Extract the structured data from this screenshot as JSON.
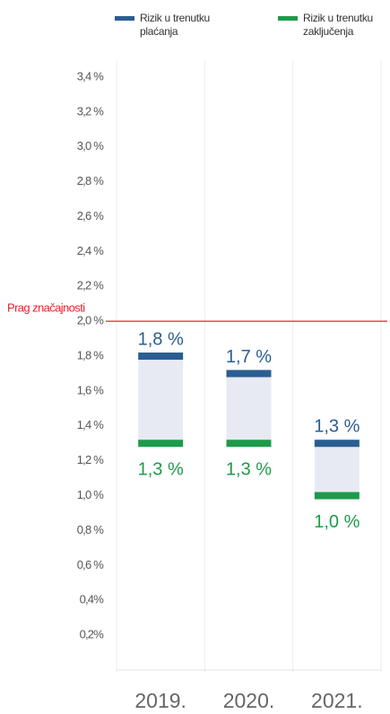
{
  "chart_data": {
    "type": "range",
    "categories": [
      "2019.",
      "2020.",
      "2021."
    ],
    "series": [
      {
        "name": "Rizik u trenutku plaćanja",
        "color": "#2b5d91",
        "values": [
          1.8,
          1.7,
          1.3
        ],
        "value_labels": [
          "1,8 %",
          "1,7 %",
          "1,3 %"
        ]
      },
      {
        "name": "Rizik u trenutku zaključenja",
        "color": "#1e9a4b",
        "values": [
          1.3,
          1.3,
          1.0
        ],
        "value_labels": [
          "1,3 %",
          "1,3 %",
          "1,0 %"
        ]
      }
    ],
    "threshold": {
      "value": 2.0,
      "label": "Prag značajnosti",
      "color": "#e8222a"
    },
    "range_color": "#e8eaf3",
    "ylim": [
      0,
      3.5
    ],
    "yticks": [
      {
        "value": 0.2,
        "label": "0,2%"
      },
      {
        "value": 0.4,
        "label": "0,4%"
      },
      {
        "value": 0.6,
        "label": "0,6 %"
      },
      {
        "value": 0.8,
        "label": "0,8 %"
      },
      {
        "value": 1.0,
        "label": "1,0 %"
      },
      {
        "value": 1.2,
        "label": "1,2 %"
      },
      {
        "value": 1.4,
        "label": "1,4 %"
      },
      {
        "value": 1.6,
        "label": "1,6 %"
      },
      {
        "value": 1.8,
        "label": "1,8 %"
      },
      {
        "value": 2.0,
        "label": "2,0 %"
      },
      {
        "value": 2.2,
        "label": "2,2 %"
      },
      {
        "value": 2.4,
        "label": "2,4 %"
      },
      {
        "value": 2.6,
        "label": "2,6 %"
      },
      {
        "value": 2.8,
        "label": "2,8 %"
      },
      {
        "value": 3.0,
        "label": "3,0 %"
      },
      {
        "value": 3.2,
        "label": "3,2 %"
      },
      {
        "value": 3.4,
        "label": "3,4 %"
      }
    ]
  }
}
